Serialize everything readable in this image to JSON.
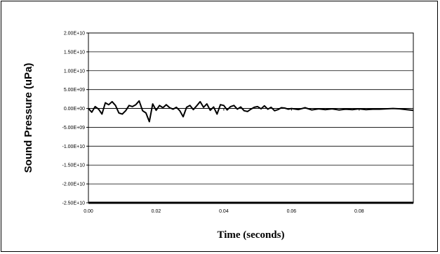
{
  "chart_data": {
    "type": "line",
    "title": "",
    "xlabel": "Time (seconds)",
    "ylabel": "Sound Pressure (uPa)",
    "xlim": [
      0,
      0.096
    ],
    "ylim": [
      -25000000000.0,
      20000000000.0
    ],
    "grid": "horizontal",
    "legend": "none",
    "x_ticks": [
      "0.00",
      "0.02",
      "0.04",
      "0.06",
      "0.08"
    ],
    "y_ticks": [
      "2.00E+10",
      "1.50E+10",
      "1.00E+10",
      "5.00E+09",
      "0.00E+00",
      "-5.00E+09",
      "-1.00E+10",
      "-1.50E+10",
      "-2.00E+10",
      "-2.50E+10"
    ],
    "series": [
      {
        "color": "#000000",
        "x": [
          0.0,
          0.001,
          0.002,
          0.003,
          0.004,
          0.005,
          0.006,
          0.007,
          0.008,
          0.009,
          0.01,
          0.011,
          0.012,
          0.013,
          0.014,
          0.015,
          0.016,
          0.017,
          0.018,
          0.019,
          0.02,
          0.021,
          0.022,
          0.023,
          0.024,
          0.025,
          0.026,
          0.027,
          0.028,
          0.029,
          0.03,
          0.031,
          0.032,
          0.033,
          0.034,
          0.035,
          0.036,
          0.037,
          0.038,
          0.039,
          0.04,
          0.041,
          0.042,
          0.043,
          0.044,
          0.045,
          0.046,
          0.047,
          0.048,
          0.049,
          0.05,
          0.051,
          0.052,
          0.053,
          0.054,
          0.055,
          0.056,
          0.057,
          0.058,
          0.059,
          0.06,
          0.062,
          0.064,
          0.066,
          0.068,
          0.07,
          0.072,
          0.074,
          0.076,
          0.078,
          0.08,
          0.082,
          0.084,
          0.086,
          0.088,
          0.09,
          0.092,
          0.094,
          0.096
        ],
        "y": [
          0.0,
          -1000000000.0,
          500000000.0,
          -200000000.0,
          -1500000000.0,
          1500000000.0,
          1000000000.0,
          1800000000.0,
          800000000.0,
          -1200000000.0,
          -1500000000.0,
          -600000000.0,
          800000000.0,
          500000000.0,
          1000000000.0,
          2000000000.0,
          -600000000.0,
          -1200000000.0,
          -3500000000.0,
          1200000000.0,
          -500000000.0,
          800000000.0,
          200000000.0,
          1000000000.0,
          200000000.0,
          -200000000.0,
          300000000.0,
          -600000000.0,
          -2200000000.0,
          300000000.0,
          800000000.0,
          -300000000.0,
          700000000.0,
          1800000000.0,
          300000000.0,
          1200000000.0,
          -500000000.0,
          400000000.0,
          -1500000000.0,
          1000000000.0,
          800000000.0,
          -400000000.0,
          500000000.0,
          800000000.0,
          -200000000.0,
          400000000.0,
          -600000000.0,
          -800000000.0,
          -200000000.0,
          300000000.0,
          500000000.0,
          -100000000.0,
          700000000.0,
          -200000000.0,
          300000000.0,
          -600000000.0,
          -300000000.0,
          200000000.0,
          100000000.0,
          -200000000.0,
          0.0,
          -300000000.0,
          200000000.0,
          -400000000.0,
          -100000000.0,
          -300000000.0,
          -100000000.0,
          -400000000.0,
          -200000000.0,
          -300000000.0,
          -100000000.0,
          -300000000.0,
          -200000000.0,
          -200000000.0,
          -100000000.0,
          0.0,
          -100000000.0,
          -300000000.0,
          -500000000.0
        ]
      }
    ]
  }
}
